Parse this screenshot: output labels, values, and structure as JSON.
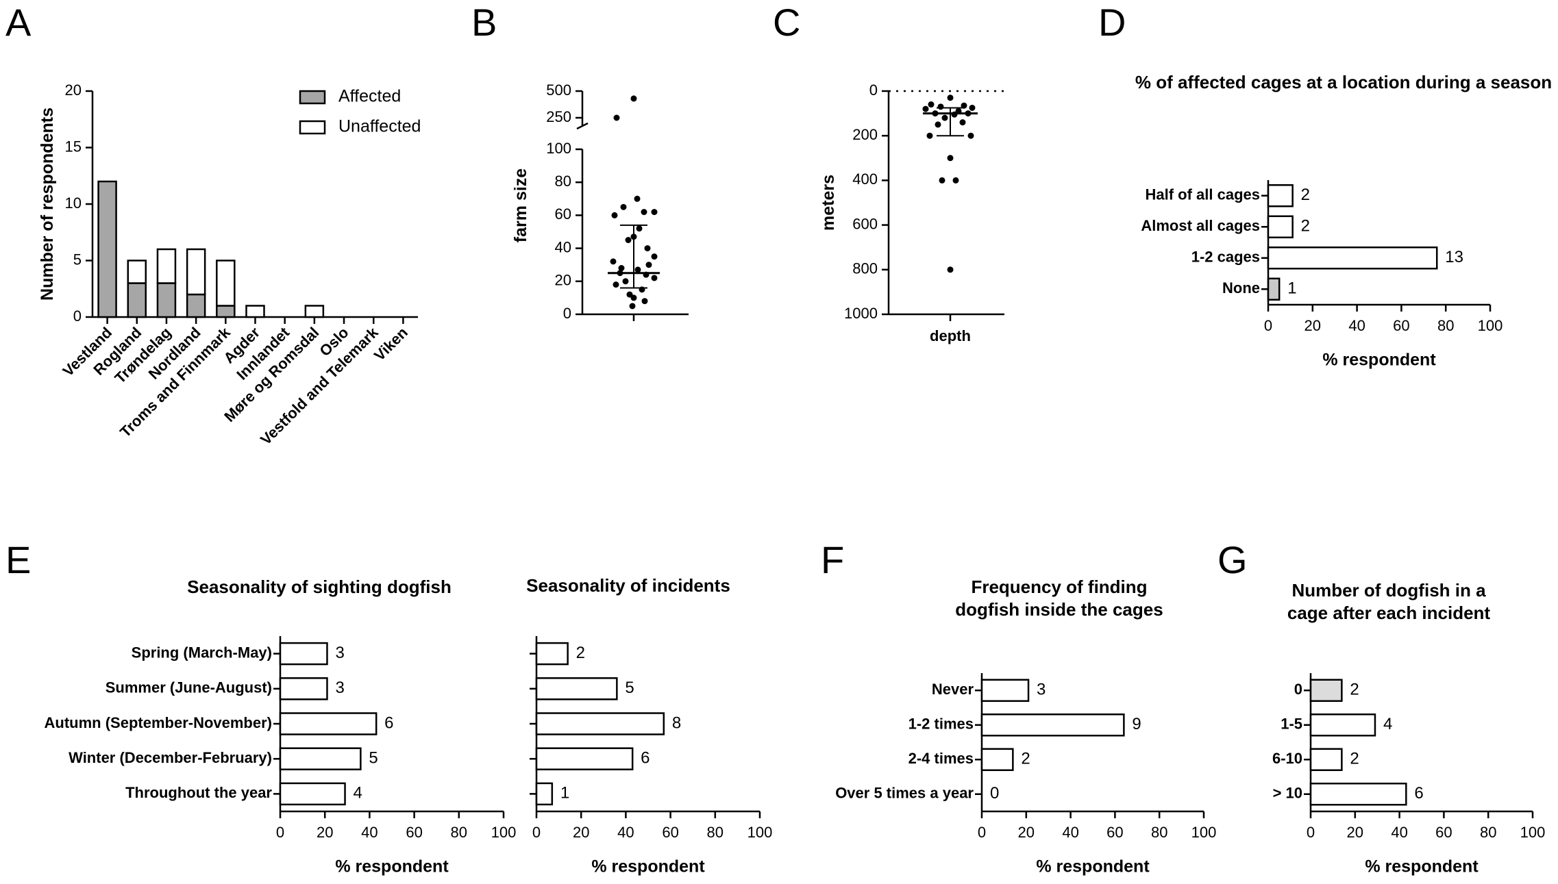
{
  "panel_labels": [
    "A",
    "B",
    "C",
    "D",
    "E",
    "F",
    "G"
  ],
  "chart_data": [
    {
      "id": "A",
      "type": "bar",
      "stacked": true,
      "title": "",
      "xlabel": "",
      "ylabel": "Number of respondents",
      "ylim": [
        0,
        20
      ],
      "yticks": [
        0,
        5,
        10,
        15,
        20
      ],
      "categories": [
        "Vestland",
        "Rogland",
        "Trøndelag",
        "Nordland",
        "Troms and Finnmark",
        "Agder",
        "Innlandet",
        "Møre og Romsdal",
        "Oslo",
        "Vestfold and Telemark",
        "Viken"
      ],
      "series": [
        {
          "name": "Affected",
          "color": "#a6a6a6",
          "values": [
            12,
            3,
            3,
            2,
            1,
            0,
            0,
            0,
            0,
            0,
            0
          ]
        },
        {
          "name": "Unaffected",
          "color": "#ffffff",
          "values": [
            0,
            2,
            3,
            4,
            4,
            1,
            0,
            1,
            0,
            0,
            0
          ]
        }
      ],
      "legend": "top-right"
    },
    {
      "id": "B",
      "type": "scatter",
      "xlabel": "",
      "ylabel": "farm size",
      "ytick_labels": [
        "0",
        "20",
        "40",
        "60",
        "80",
        "100",
        "250",
        "500"
      ],
      "points": [
        430,
        230,
        70,
        65,
        62,
        62,
        60,
        52,
        47,
        45,
        40,
        35,
        32,
        30,
        28,
        27,
        25,
        24,
        22,
        20,
        18,
        15,
        12,
        10,
        8,
        5
      ],
      "median": 25,
      "q1": 16,
      "q3": 54
    },
    {
      "id": "C",
      "type": "scatter",
      "xlabel": "depth",
      "ylabel": "meters",
      "ylim": [
        0,
        1000
      ],
      "yticks": [
        0,
        200,
        400,
        600,
        800,
        1000
      ],
      "points": [
        30,
        60,
        65,
        70,
        75,
        80,
        90,
        100,
        100,
        105,
        120,
        140,
        150,
        200,
        200,
        300,
        400,
        400,
        800
      ],
      "median": 100,
      "q1": 75,
      "q3": 200
    },
    {
      "id": "D",
      "type": "bar",
      "orientation": "horizontal",
      "title": "% of affected cages at a location during a season",
      "xlabel": "% respondent",
      "xlim": [
        0,
        100
      ],
      "xticks": [
        0,
        20,
        40,
        60,
        80,
        100
      ],
      "categories": [
        "Half of all cages",
        "Almost all cages",
        "1-2 cages",
        "None"
      ],
      "values": [
        11,
        11,
        76,
        5
      ],
      "labels": [
        "2",
        "2",
        "13",
        "1"
      ],
      "colors": [
        "#ffffff",
        "#ffffff",
        "#ffffff",
        "#c8c8c8"
      ]
    },
    {
      "id": "E1",
      "type": "bar",
      "orientation": "horizontal",
      "title": "Seasonality of sighting dogfish",
      "xlabel": "% respondent",
      "xlim": [
        0,
        100
      ],
      "xticks": [
        0,
        20,
        40,
        60,
        80,
        100
      ],
      "categories": [
        "Spring (March-May)",
        "Summer (June-August)",
        "Autumn (September-November)",
        "Winter (December-February)",
        "Throughout the year"
      ],
      "values": [
        21,
        21,
        43,
        36,
        29
      ],
      "labels": [
        "3",
        "3",
        "6",
        "5",
        "4"
      ]
    },
    {
      "id": "E2",
      "type": "bar",
      "orientation": "horizontal",
      "title": "Seasonality of incidents",
      "xlabel": "% respondent",
      "xlim": [
        0,
        100
      ],
      "xticks": [
        0,
        20,
        40,
        60,
        80,
        100
      ],
      "categories": [
        "Spring (March-May)",
        "Summer (June-August)",
        "Autumn (September-November)",
        "Winter (December-February)",
        "Throughout the year"
      ],
      "values": [
        14,
        36,
        57,
        43,
        7
      ],
      "labels": [
        "2",
        "5",
        "8",
        "6",
        "1"
      ]
    },
    {
      "id": "F",
      "type": "bar",
      "orientation": "horizontal",
      "title": [
        "Frequency of finding",
        "dogfish inside the cages"
      ],
      "xlabel": "% respondent",
      "xlim": [
        0,
        100
      ],
      "xticks": [
        0,
        20,
        40,
        60,
        80,
        100
      ],
      "categories": [
        "Never",
        "1-2 times",
        "2-4 times",
        "Over 5 times a year"
      ],
      "values": [
        21,
        64,
        14,
        0
      ],
      "labels": [
        "3",
        "9",
        "2",
        "0"
      ]
    },
    {
      "id": "G",
      "type": "bar",
      "orientation": "horizontal",
      "title": [
        "Number of dogfish in a",
        "cage after each incident"
      ],
      "xlabel": "% respondent",
      "xlim": [
        0,
        100
      ],
      "xticks": [
        0,
        20,
        40,
        60,
        80,
        100
      ],
      "categories": [
        "0",
        "1-5",
        "6-10",
        "> 10"
      ],
      "values": [
        14,
        29,
        14,
        43
      ],
      "labels": [
        "2",
        "4",
        "2",
        "6"
      ],
      "colors": [
        "#dcdcdc",
        "#ffffff",
        "#ffffff",
        "#ffffff"
      ]
    }
  ]
}
